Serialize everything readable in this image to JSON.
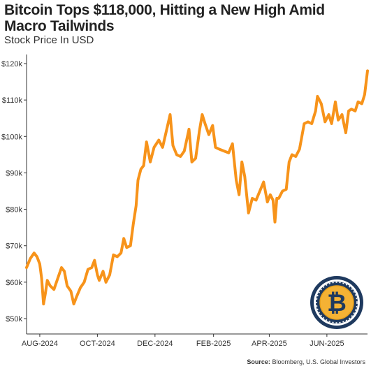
{
  "title": "Bitcoin Tops $118,000, Hitting a New High Amid Macro Tailwinds",
  "subtitle": "Stock Price In USD",
  "source_label": "Source:",
  "source_text": "Bloomberg, U.S. Global Investors",
  "logo": {
    "icon": "bitcoin-icon",
    "glyph": "₿"
  },
  "colors": {
    "line": "#f7931a",
    "gold": "#f4b234",
    "navy": "#1f3a5f",
    "axis": "#333333",
    "grid": "#dddddd"
  },
  "chart_data": {
    "type": "line",
    "title": "Bitcoin Tops $118,000, Hitting a New High Amid Macro Tailwinds",
    "ylabel": "Stock Price In USD",
    "xlabel": "",
    "x_ticks": [
      "AUG-2024",
      "OCT-2024",
      "DEC-2024",
      "FEB-2025",
      "APR-2025",
      "JUN-2025"
    ],
    "y_ticks": [
      "$50k",
      "$60k",
      "$70k",
      "$80k",
      "$90k",
      "$100k",
      "$110k",
      "$120k"
    ],
    "ylim": [
      50000,
      120000
    ],
    "xlim": [
      "2024-07-18",
      "2025-07-14"
    ],
    "grid": false,
    "series": [
      {
        "x": [
          "2024-07-18",
          "2024-07-22",
          "2024-07-26",
          "2024-07-29",
          "2024-08-01",
          "2024-08-03",
          "2024-08-05",
          "2024-08-07",
          "2024-08-09",
          "2024-08-12",
          "2024-08-16",
          "2024-08-20",
          "2024-08-24",
          "2024-08-27",
          "2024-08-30",
          "2024-09-03",
          "2024-09-06",
          "2024-09-09",
          "2024-09-13",
          "2024-09-17",
          "2024-09-21",
          "2024-09-25",
          "2024-09-28",
          "2024-10-01",
          "2024-10-03",
          "2024-10-07",
          "2024-10-10",
          "2024-10-14",
          "2024-10-18",
          "2024-10-22",
          "2024-10-26",
          "2024-10-29",
          "2024-11-01",
          "2024-11-05",
          "2024-11-08",
          "2024-11-11",
          "2024-11-13",
          "2024-11-16",
          "2024-11-19",
          "2024-11-22",
          "2024-11-26",
          "2024-11-30",
          "2024-12-05",
          "2024-12-09",
          "2024-12-13",
          "2024-12-17",
          "2024-12-20",
          "2024-12-24",
          "2024-12-28",
          "2025-01-01",
          "2025-01-06",
          "2025-01-09",
          "2025-01-13",
          "2025-01-17",
          "2025-01-20",
          "2025-01-23",
          "2025-01-27",
          "2025-01-31",
          "2025-02-03",
          "2025-02-07",
          "2025-02-12",
          "2025-02-17",
          "2025-02-21",
          "2025-02-25",
          "2025-02-28",
          "2025-03-03",
          "2025-03-06",
          "2025-03-10",
          "2025-03-14",
          "2025-03-18",
          "2025-03-22",
          "2025-03-26",
          "2025-03-30",
          "2025-04-02",
          "2025-04-05",
          "2025-04-07",
          "2025-04-09",
          "2025-04-11",
          "2025-04-15",
          "2025-04-19",
          "2025-04-22",
          "2025-04-25",
          "2025-04-29",
          "2025-05-03",
          "2025-05-08",
          "2025-05-12",
          "2025-05-16",
          "2025-05-20",
          "2025-05-22",
          "2025-05-26",
          "2025-05-30",
          "2025-06-03",
          "2025-06-06",
          "2025-06-10",
          "2025-06-13",
          "2025-06-17",
          "2025-06-21",
          "2025-06-24",
          "2025-06-27",
          "2025-07-01",
          "2025-07-04",
          "2025-07-08",
          "2025-07-11",
          "2025-07-14"
        ],
        "values": [
          64000,
          66500,
          68000,
          67000,
          65000,
          61000,
          54000,
          57000,
          60500,
          59000,
          58000,
          61000,
          64000,
          63000,
          59000,
          57500,
          54000,
          56000,
          58500,
          60000,
          63500,
          64000,
          66000,
          62000,
          60500,
          63000,
          60000,
          62000,
          67500,
          67000,
          68000,
          72000,
          69500,
          70000,
          76000,
          81000,
          88000,
          91000,
          92000,
          98500,
          93000,
          97000,
          99000,
          97000,
          101500,
          106000,
          97500,
          95000,
          94500,
          96000,
          102000,
          93000,
          94000,
          101500,
          106000,
          103500,
          100500,
          103000,
          97000,
          96500,
          96000,
          95500,
          98000,
          88000,
          84000,
          93000,
          89000,
          79000,
          83000,
          82500,
          85000,
          87500,
          82000,
          84000,
          82500,
          76500,
          83000,
          83000,
          85000,
          85500,
          93000,
          95000,
          94500,
          96500,
          103500,
          104000,
          103500,
          107000,
          111000,
          109000,
          104000,
          106000,
          103500,
          109500,
          104500,
          106000,
          101000,
          107000,
          107500,
          107000,
          109500,
          109000,
          111500,
          118000
        ]
      }
    ]
  }
}
